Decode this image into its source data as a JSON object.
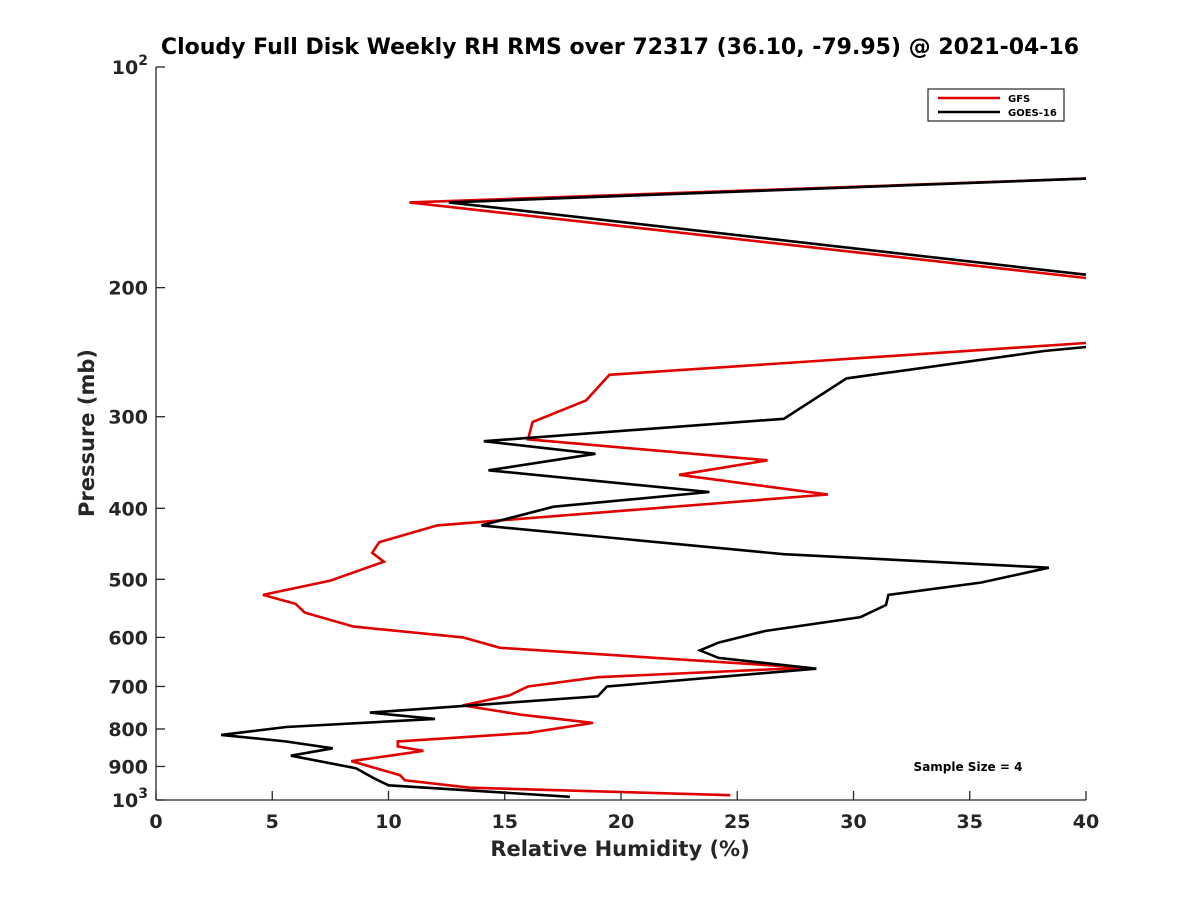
{
  "chart_data": {
    "type": "line",
    "title": "Cloudy Full Disk Weekly RH RMS over 72317 (36.10, -79.95) @ 2021-04-16",
    "xlabel": "Relative Humidity (%)",
    "ylabel": "Pressure (mb)",
    "xlim": [
      0,
      40
    ],
    "ylim": [
      100,
      1000
    ],
    "y_scale": "log",
    "y_reversed": true,
    "grid": false,
    "legend_placement": "top-right",
    "annotation": "Sample Size = 4",
    "x_ticks": [
      "0",
      "5",
      "10",
      "15",
      "20",
      "25",
      "30",
      "35",
      "40"
    ],
    "y_ticks": [
      {
        "value": 100,
        "base": "10",
        "exp": "2"
      },
      {
        "value": 200,
        "label": "200"
      },
      {
        "value": 300,
        "label": "300"
      },
      {
        "value": 400,
        "label": "400"
      },
      {
        "value": 500,
        "label": "500"
      },
      {
        "value": 600,
        "label": "600"
      },
      {
        "value": 700,
        "label": "700"
      },
      {
        "value": 800,
        "label": "800"
      },
      {
        "value": 900,
        "label": "900"
      },
      {
        "value": 1000,
        "base": "10",
        "exp": "3"
      }
    ],
    "series": [
      {
        "name": "GFS",
        "color": "#e00000",
        "points": [
          [
            24.7,
            985
          ],
          [
            13.5,
            962
          ],
          [
            10.7,
            940
          ],
          [
            10.5,
            925
          ],
          [
            8.4,
            885
          ],
          [
            11.5,
            857
          ],
          [
            10.4,
            845
          ],
          [
            10.4,
            832
          ],
          [
            16.0,
            810
          ],
          [
            18.8,
            785
          ],
          [
            15.7,
            765
          ],
          [
            13.2,
            743
          ],
          [
            15.2,
            720
          ],
          [
            16.0,
            700
          ],
          [
            19.0,
            680
          ],
          [
            28.0,
            660
          ],
          [
            14.8,
            620
          ],
          [
            13.2,
            600
          ],
          [
            8.5,
            580
          ],
          [
            6.4,
            555
          ],
          [
            6.0,
            540
          ],
          [
            4.6,
            525
          ],
          [
            7.5,
            502
          ],
          [
            9.8,
            473
          ],
          [
            9.3,
            460
          ],
          [
            9.6,
            445
          ],
          [
            12.1,
            422
          ],
          [
            28.9,
            383
          ],
          [
            22.5,
            360
          ],
          [
            26.3,
            344
          ],
          [
            16.0,
            322
          ],
          [
            16.2,
            305
          ],
          [
            18.5,
            285
          ],
          [
            19.5,
            263
          ],
          [
            40.0,
            238
          ]
        ]
      },
      {
        "name": "GOES-16",
        "color": "#000000",
        "points": [
          [
            17.8,
            990
          ],
          [
            10.0,
            955
          ],
          [
            9.4,
            935
          ],
          [
            8.6,
            905
          ],
          [
            5.8,
            870
          ],
          [
            7.6,
            850
          ],
          [
            5.6,
            832
          ],
          [
            2.8,
            815
          ],
          [
            5.6,
            795
          ],
          [
            12.0,
            775
          ],
          [
            9.2,
            760
          ],
          [
            19.0,
            722
          ],
          [
            19.4,
            700
          ],
          [
            28.4,
            662
          ],
          [
            24.2,
            640
          ],
          [
            23.4,
            625
          ],
          [
            24.2,
            610
          ],
          [
            26.2,
            588
          ],
          [
            30.3,
            563
          ],
          [
            31.4,
            542
          ],
          [
            31.5,
            525
          ],
          [
            35.5,
            505
          ],
          [
            38.4,
            482
          ],
          [
            27.0,
            462
          ],
          [
            14.0,
            422
          ],
          [
            17.1,
            398
          ],
          [
            23.8,
            380
          ],
          [
            14.3,
            355
          ],
          [
            18.9,
            337
          ],
          [
            14.1,
            324
          ],
          [
            27.0,
            302
          ],
          [
            29.7,
            266
          ],
          [
            38.2,
            244
          ],
          [
            40.0,
            241
          ]
        ]
      }
    ],
    "upper_segments": [
      {
        "series": "GFS",
        "color": "#e00000",
        "points": [
          [
            40.0,
            142
          ],
          [
            10.9,
            153
          ],
          [
            40.0,
            194
          ]
        ]
      },
      {
        "series": "GOES-16",
        "color": "#000000",
        "points": [
          [
            40.0,
            142
          ],
          [
            12.6,
            153
          ],
          [
            40.0,
            192
          ]
        ]
      }
    ]
  }
}
